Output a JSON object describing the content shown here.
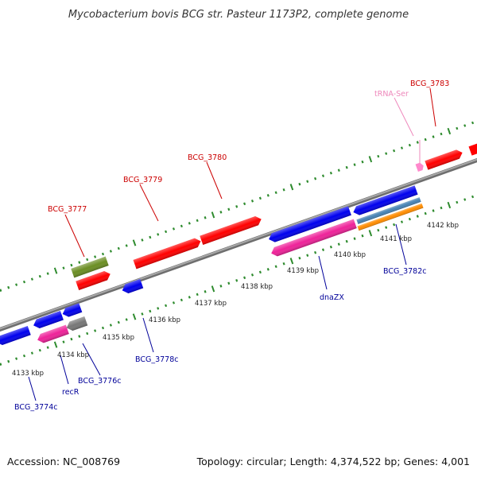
{
  "title": "Mycobacterium bovis BCG str. Pasteur 1173P2, complete genome",
  "footer": {
    "accession": "Accession: NC_008769",
    "summary": "Topology: circular; Length: 4,374,522 bp; Genes: 4,001"
  },
  "colors": {
    "backbone": "#8c8c8c",
    "tick": "#2e8b2e",
    "label_top": "#cc0000",
    "label_bottom": "#000099",
    "label_trna": "#ee88bb"
  },
  "scale_labels": [
    "4133 kbp",
    "4134 kbp",
    "4135 kbp",
    "4136 kbp",
    "4137 kbp",
    "4138 kbp",
    "4139 kbp",
    "4140 kbp",
    "4141 kbp",
    "4142 kbp"
  ],
  "gene_labels": {
    "top": [
      "BCG_3777",
      "BCG_3779",
      "BCG_3780",
      "BCG_3783"
    ],
    "trna": "tRNA-Ser",
    "bottom": [
      "BCG_3774c",
      "recR",
      "BCG_3776c",
      "BCG_3778c",
      "dnaZX",
      "BCG_3782c"
    ]
  },
  "features": [
    {
      "id": "bcg3777-olive",
      "color": "#6b8e23",
      "strand": "forward"
    },
    {
      "id": "bcg3777",
      "color": "#ff0000",
      "strand": "forward"
    },
    {
      "id": "bcg3779",
      "color": "#ff0000",
      "strand": "forward"
    },
    {
      "id": "bcg3780",
      "color": "#ff0000",
      "strand": "forward"
    },
    {
      "id": "bcg3783",
      "color": "#ff0000",
      "strand": "forward"
    },
    {
      "id": "trna-ser",
      "color": "#ff88cc",
      "strand": "forward"
    },
    {
      "id": "bcg3774c",
      "color": "#0000ee",
      "strand": "reverse"
    },
    {
      "id": "recR",
      "color": "#ee2299",
      "strand": "reverse"
    },
    {
      "id": "bcg3776c",
      "color": "#0000ee",
      "strand": "reverse"
    },
    {
      "id": "bcg3776c-gray",
      "color": "#777777",
      "strand": "reverse"
    },
    {
      "id": "bcg3778c",
      "color": "#0000ee",
      "strand": "reverse"
    },
    {
      "id": "dnaZX-blue",
      "color": "#0000ee",
      "strand": "reverse"
    },
    {
      "id": "dnaZX",
      "color": "#ee2299",
      "strand": "reverse"
    },
    {
      "id": "bcg3782c-blue",
      "color": "#0000ee",
      "strand": "reverse"
    },
    {
      "id": "bcg3782c-steel",
      "color": "#4682b4",
      "strand": "reverse"
    },
    {
      "id": "bcg3782c-orange",
      "color": "#ff8c00",
      "strand": "reverse"
    }
  ]
}
